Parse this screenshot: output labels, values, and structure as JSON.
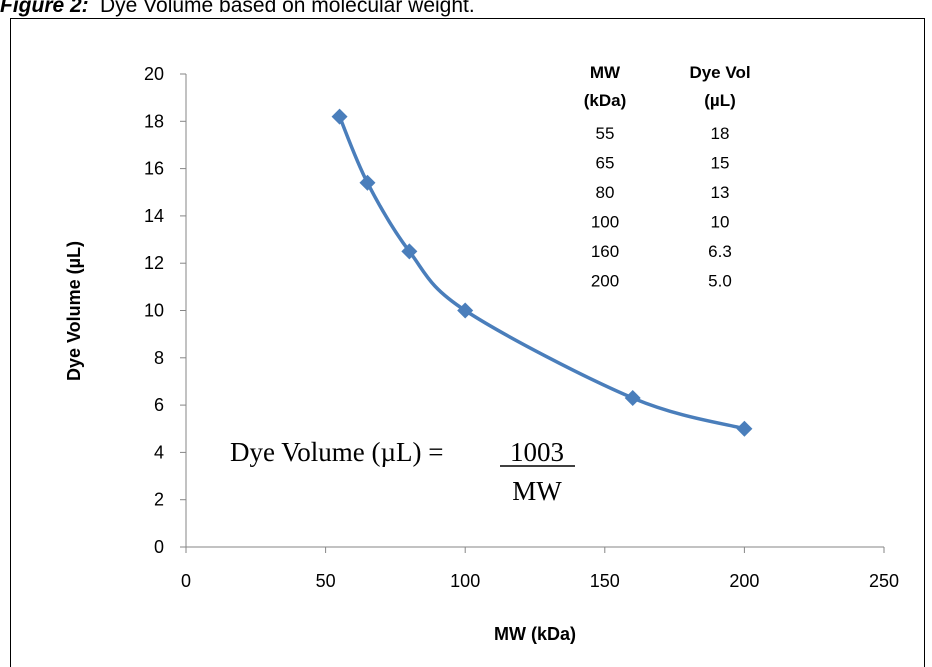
{
  "title_label": "Figure 2:",
  "title": "Dye Volume based on molecular weight.",
  "chart_data": {
    "type": "line",
    "x_label": "MW (kDa)",
    "y_label": "Dye Volume (µL)",
    "x": [
      55,
      65,
      80,
      100,
      160,
      200
    ],
    "series": [
      {
        "values": [
          18.2,
          15.4,
          12.5,
          10.0,
          6.3,
          5.0
        ],
        "color": "#4a7ebb",
        "marker": "diamond"
      }
    ],
    "smooth": true,
    "xlim": [
      0,
      250
    ],
    "xticks": [
      0,
      50,
      100,
      150,
      200,
      250
    ],
    "ylim": [
      0,
      20
    ],
    "yticks": [
      0,
      2,
      4,
      6,
      8,
      10,
      12,
      14,
      16,
      18,
      20
    ],
    "table": {
      "header": [
        [
          "MW",
          "(kDa)"
        ],
        [
          "Dye Vol",
          "(µL)"
        ]
      ],
      "rows": [
        [
          "55",
          "18"
        ],
        [
          "65",
          "15"
        ],
        [
          "80",
          "13"
        ],
        [
          "100",
          "10"
        ],
        [
          "160",
          "6.3"
        ],
        [
          "200",
          "5.0"
        ]
      ]
    },
    "equation": {
      "lhs": "Dye Volume (µL) =",
      "numerator": "1003",
      "denominator": "MW"
    }
  }
}
